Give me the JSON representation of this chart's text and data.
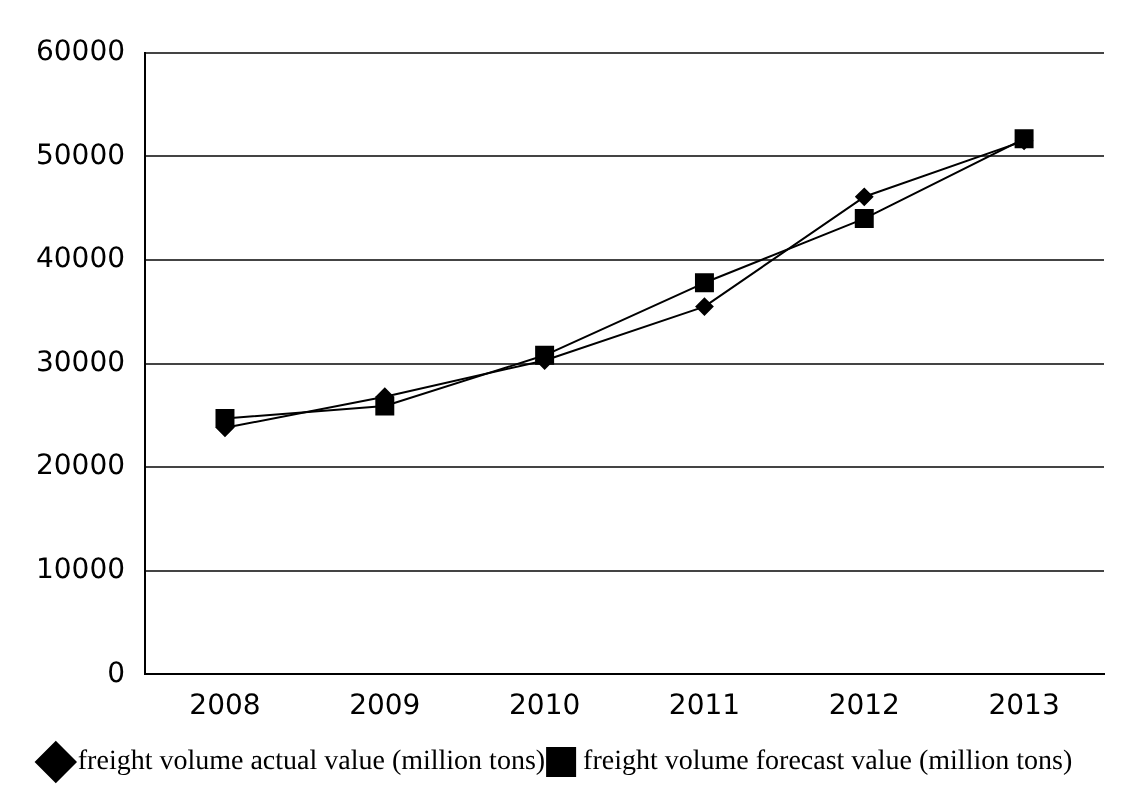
{
  "chart_data": {
    "type": "line",
    "categories": [
      "2008",
      "2009",
      "2010",
      "2011",
      "2012",
      "2013"
    ],
    "series": [
      {
        "name": "freight volume actual value (million tons)",
        "color": "#000000",
        "marker": "diamond",
        "values": [
          23800,
          26800,
          30300,
          35500,
          46100,
          51500
        ]
      },
      {
        "name": "freight volume forecast value (million tons)",
        "color": "#000000",
        "marker": "square",
        "values": [
          24700,
          25900,
          30800,
          37800,
          44000,
          51700
        ]
      }
    ],
    "ylim": [
      0,
      60000
    ],
    "yticks": [
      0,
      10000,
      20000,
      30000,
      40000,
      50000,
      60000
    ],
    "grid": "y",
    "legend": "bottom",
    "line_style": "solid"
  }
}
